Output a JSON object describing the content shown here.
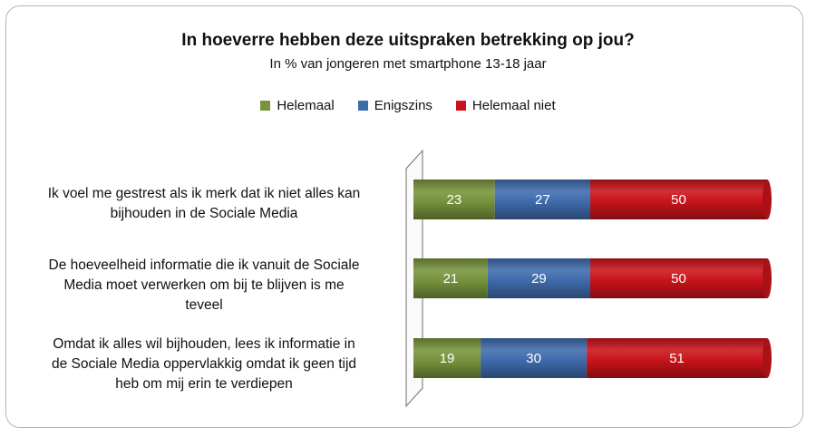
{
  "chart_data": {
    "type": "bar",
    "stacked": true,
    "orientation": "horizontal",
    "title": "In hoeverre hebben deze uitspraken betrekking op jou?",
    "subtitle": "In % van jongeren met smartphone 13-18 jaar",
    "legend_position": "top",
    "categories": [
      "Ik voel me gestrest als ik merk dat ik niet alles kan bijhouden in de Sociale Media",
      "De hoeveelheid informatie die ik vanuit de Sociale Media moet verwerken om bij te blijven is me teveel",
      "Omdat ik alles wil bijhouden, lees ik informatie in de Sociale Media oppervlakkig omdat ik geen tijd heb om mij erin te verdiepen"
    ],
    "category_lines": [
      [
        "Ik voel me gestrest als ik merk dat ik niet alles kan",
        "bijhouden in de Sociale Media"
      ],
      [
        "De hoeveelheid informatie die ik vanuit de Sociale",
        "Media moet verwerken om bij te blijven is me",
        "teveel"
      ],
      [
        "Omdat ik alles wil bijhouden, lees ik informatie in",
        "de Sociale Media oppervlakkig omdat ik geen tijd",
        "heb om mij erin te verdiepen"
      ]
    ],
    "series": [
      {
        "name": "Helemaal",
        "color": "#77933c",
        "values": [
          23,
          21,
          19
        ]
      },
      {
        "name": "Enigszins",
        "color": "#3f6bac",
        "values": [
          27,
          29,
          30
        ]
      },
      {
        "name": "Helemaal niet",
        "color": "#c8141a",
        "values": [
          50,
          50,
          51
        ]
      }
    ],
    "xlim": [
      0,
      100
    ],
    "grid": false
  }
}
